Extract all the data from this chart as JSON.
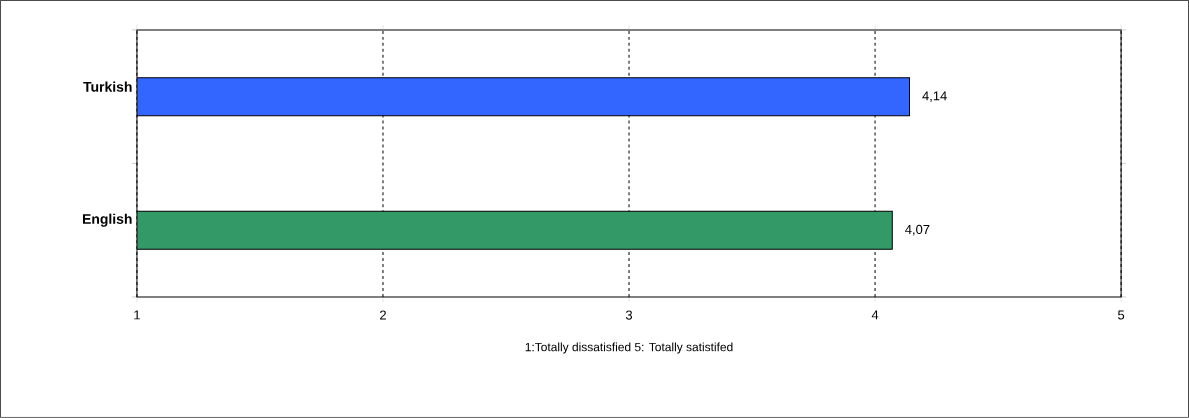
{
  "chart_data": {
    "type": "bar",
    "orientation": "horizontal",
    "categories": [
      "Turkish",
      "English"
    ],
    "values": [
      4.14,
      4.07
    ],
    "colors": [
      "#3366ff",
      "#339966"
    ],
    "value_labels": [
      "4,14",
      "4,07"
    ],
    "xlim": [
      1,
      5
    ],
    "xticks": [
      1,
      2,
      3,
      4,
      5
    ],
    "grid": "x",
    "xlabel": "1:Totally dissatisfied 5: Totally satistifed"
  }
}
